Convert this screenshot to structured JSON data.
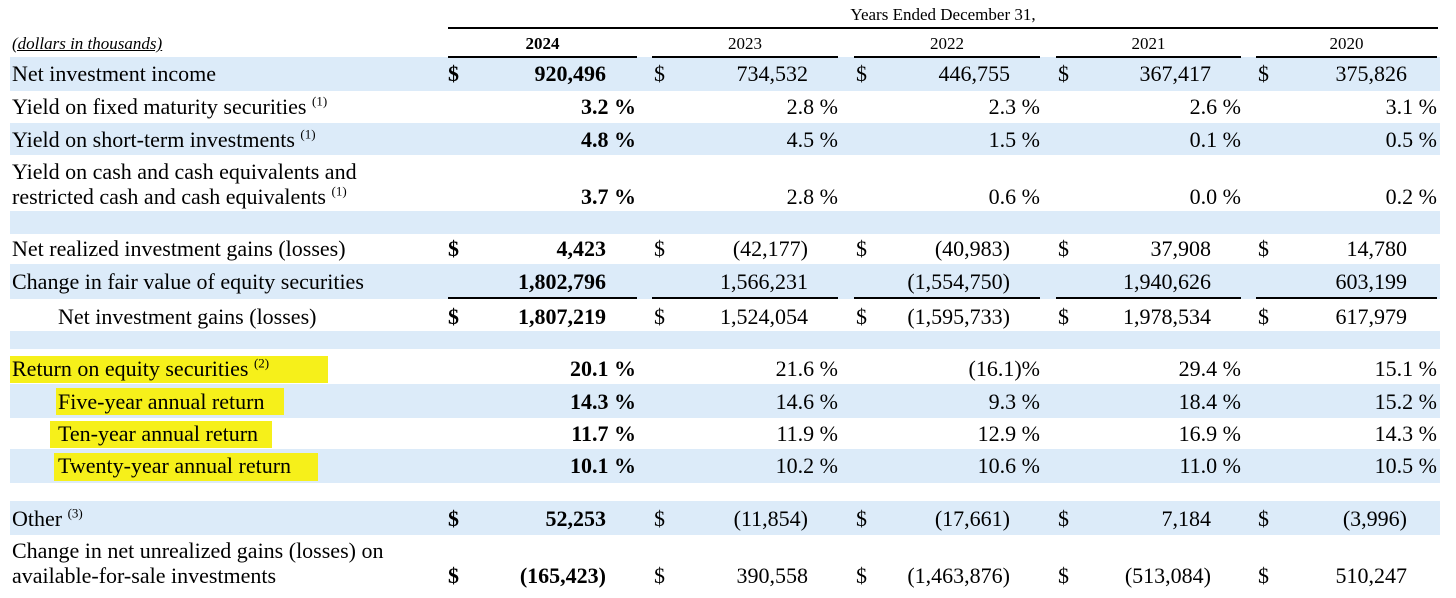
{
  "header": {
    "span_title": "Years Ended December 31,",
    "units_label": "(dollars in thousands)",
    "years": [
      "2024",
      "2023",
      "2022",
      "2021",
      "2020"
    ]
  },
  "colors": {
    "band": "#dcebf9",
    "highlight": "#f6f01a"
  },
  "rows": [
    {
      "label": "Net investment income",
      "sup": "",
      "dollar": true,
      "values": [
        "920,496",
        "734,532",
        "446,755",
        "367,417",
        "375,826"
      ]
    },
    {
      "label": "Yield on fixed maturity securities",
      "sup": "(1)",
      "dollar": false,
      "values": [
        "3.2 %",
        "2.8 %",
        "2.3 %",
        "2.6 %",
        "3.1 %"
      ]
    },
    {
      "label": "Yield on short-term investments",
      "sup": "(1)",
      "dollar": false,
      "values": [
        "4.8 %",
        "4.5 %",
        "1.5 %",
        "0.1 %",
        "0.5 %"
      ]
    },
    {
      "label": "Yield on cash and cash equivalents and",
      "label2": "restricted cash and cash equivalents",
      "sup": "(1)",
      "dollar": false,
      "values": [
        "3.7 %",
        "2.8 %",
        "0.6 %",
        "0.0 %",
        "0.2 %"
      ]
    },
    {
      "label": "Net realized investment gains (losses)",
      "sup": "",
      "dollar": true,
      "values": [
        "4,423",
        "(42,177)",
        "(40,983)",
        "37,908",
        "14,780"
      ]
    },
    {
      "label": "Change in fair value of equity securities",
      "sup": "",
      "dollar": false,
      "values": [
        "1,802,796",
        "1,566,231",
        "(1,554,750)",
        "1,940,626",
        "603,199"
      ]
    },
    {
      "label": "Net investment gains (losses)",
      "sup": "",
      "dollar": true,
      "values": [
        "1,807,219",
        "1,524,054",
        "(1,595,733)",
        "1,978,534",
        "617,979"
      ]
    },
    {
      "label": "Return on equity securities",
      "sup": "(2)",
      "dollar": false,
      "values": [
        "20.1 %",
        "21.6 %",
        "(16.1)%",
        "29.4 %",
        "15.1 %"
      ]
    },
    {
      "label": "Five-year annual return",
      "sup": "",
      "dollar": false,
      "values": [
        "14.3 %",
        "14.6 %",
        "9.3 %",
        "18.4 %",
        "15.2 %"
      ]
    },
    {
      "label": "Ten-year annual return",
      "sup": "",
      "dollar": false,
      "values": [
        "11.7 %",
        "11.9 %",
        "12.9 %",
        "16.9 %",
        "14.3 %"
      ]
    },
    {
      "label": "Twenty-year annual return",
      "sup": "",
      "dollar": false,
      "values": [
        "10.1 %",
        "10.2 %",
        "10.6 %",
        "11.0 %",
        "10.5 %"
      ]
    },
    {
      "label": "Other",
      "sup": "(3)",
      "dollar": true,
      "values": [
        "52,253",
        "(11,854)",
        "(17,661)",
        "7,184",
        "(3,996)"
      ]
    },
    {
      "label": "Change in net unrealized gains (losses) on",
      "label2": "available-for-sale investments",
      "sup": "",
      "dollar": true,
      "values": [
        "(165,423)",
        "390,558",
        "(1,463,876)",
        "(513,084)",
        "510,247"
      ]
    }
  ],
  "dollar_sign": "$"
}
